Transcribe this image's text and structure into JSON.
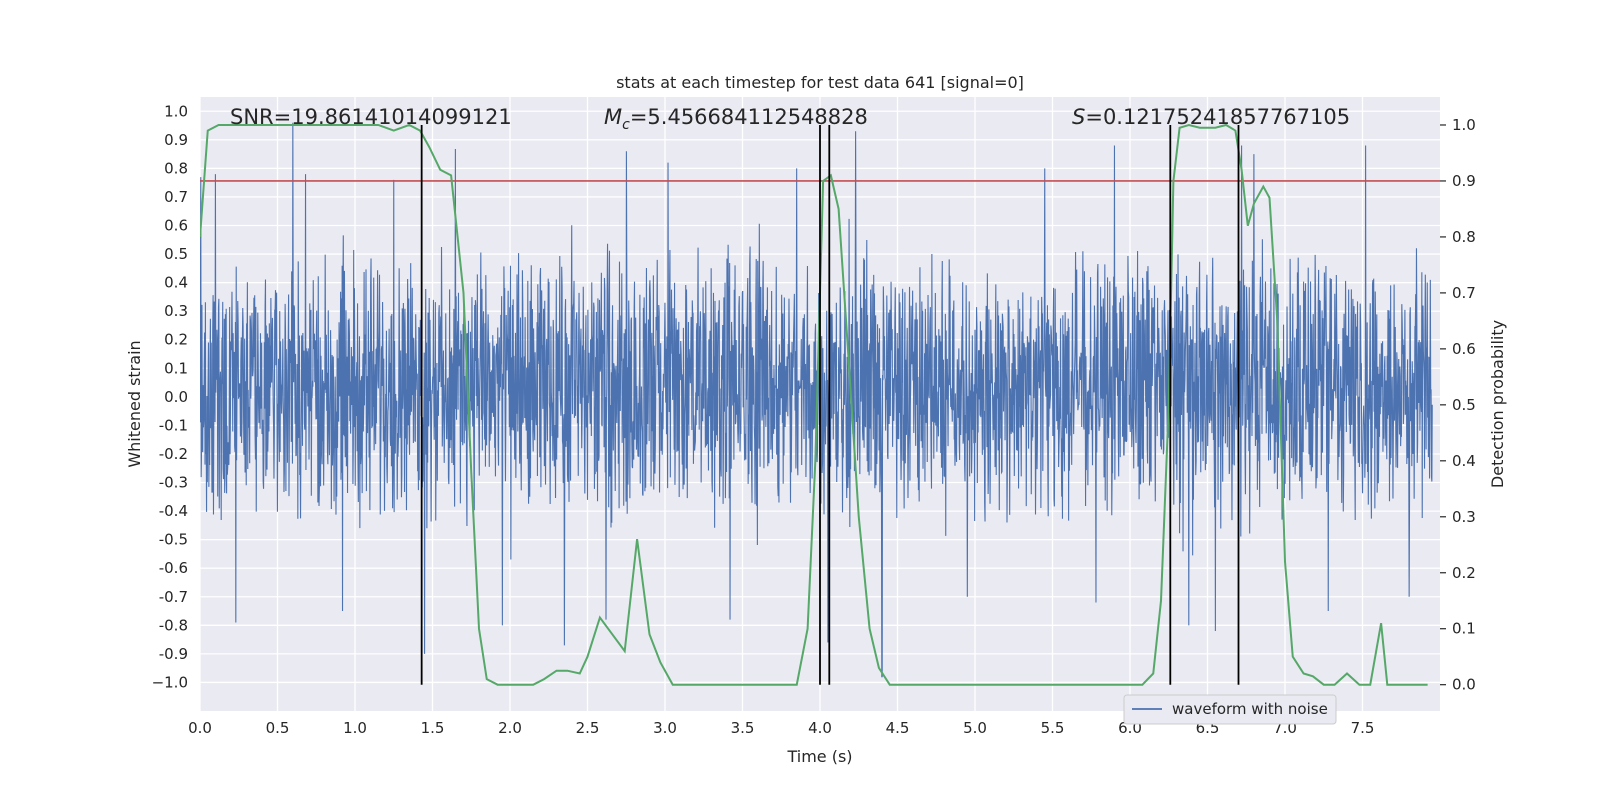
{
  "chart_data": {
    "type": "line",
    "title": "stats at each timestep for test data 641 [signal=0]",
    "xlabel": "Time (s)",
    "ylabel": "Whitened strain",
    "y2label": "Detection probability",
    "xlim": [
      0.0,
      8.0
    ],
    "ylim": [
      -1.1,
      1.05
    ],
    "y2lim": [
      -0.047,
      1.05
    ],
    "x_ticks": [
      "0.0",
      "0.5",
      "1.0",
      "1.5",
      "2.0",
      "2.5",
      "3.0",
      "3.5",
      "4.0",
      "4.5",
      "5.0",
      "5.5",
      "6.0",
      "6.5",
      "7.0",
      "7.5"
    ],
    "x_tick_values": [
      0.0,
      0.5,
      1.0,
      1.5,
      2.0,
      2.5,
      3.0,
      3.5,
      4.0,
      4.5,
      5.0,
      5.5,
      6.0,
      6.5,
      7.0,
      7.5
    ],
    "y_ticks": [
      "1.0",
      "0.9",
      "0.8",
      "0.7",
      "0.6",
      "0.5",
      "0.4",
      "0.3",
      "0.2",
      "0.1",
      "0.0",
      "-0.1",
      "-0.2",
      "-0.3",
      "-0.4",
      "-0.5",
      "-0.6",
      "-0.7",
      "-0.8",
      "-0.9",
      "−1.0"
    ],
    "y_tick_values": [
      1.0,
      0.9,
      0.8,
      0.7,
      0.6,
      0.5,
      0.4,
      0.3,
      0.2,
      0.1,
      0.0,
      -0.1,
      -0.2,
      -0.3,
      -0.4,
      -0.5,
      -0.6,
      -0.7,
      -0.8,
      -0.9,
      -1.0
    ],
    "y2_ticks": [
      "1.0",
      "0.9",
      "0.8",
      "0.7",
      "0.6",
      "0.5",
      "0.4",
      "0.3",
      "0.2",
      "0.1",
      "0.0"
    ],
    "y2_tick_values": [
      1.0,
      0.9,
      0.8,
      0.7,
      0.6,
      0.5,
      0.4,
      0.3,
      0.2,
      0.1,
      0.0
    ],
    "annotations": {
      "snr": "SNR=19.86141014099121",
      "mc_symbol": "M",
      "mc_sub": "c",
      "mc_value": "=5.456684112548828",
      "s_symbol": "S",
      "s_value": "=0.12175241857767105"
    },
    "threshold": {
      "value": 0.9,
      "color": "#c44e52"
    },
    "vertical_lines": [
      1.43,
      4.0,
      4.06,
      6.26,
      6.7
    ],
    "legend": {
      "label": "waveform with noise",
      "location": "lower-right"
    },
    "colors": {
      "waveform": "#4c72b0",
      "probability": "#55a868",
      "background": "#eaeaf2",
      "vline": "#000000"
    },
    "waveform": {
      "description": "dense noisy whitened strain trace, 0-8 s",
      "typical_envelope": [
        -0.45,
        0.55
      ],
      "spike_times": [
        0.1,
        0.23,
        0.6,
        0.68,
        0.92,
        1.25,
        1.45,
        1.95,
        2.35,
        2.62,
        2.75,
        3.02,
        3.42,
        3.85,
        4.05,
        4.23,
        4.4,
        4.95,
        5.45,
        5.78,
        5.9,
        6.38,
        6.55,
        6.72,
        6.8,
        7.28,
        7.52,
        7.8
      ],
      "spike_values": [
        0.78,
        -0.79,
        0.96,
        0.78,
        -0.75,
        0.76,
        -0.9,
        -0.8,
        -0.87,
        -0.78,
        0.86,
        0.82,
        -0.78,
        0.8,
        -0.86,
        0.93,
        -0.98,
        -0.7,
        0.8,
        -0.72,
        0.88,
        -0.8,
        -0.82,
        0.88,
        0.85,
        -0.75,
        0.88,
        -0.7
      ]
    },
    "probability": {
      "name": "detection probability",
      "x": [
        0.0,
        0.05,
        0.12,
        0.2,
        0.35,
        0.5,
        0.7,
        0.9,
        1.05,
        1.15,
        1.25,
        1.35,
        1.42,
        1.48,
        1.55,
        1.62,
        1.7,
        1.75,
        1.8,
        1.85,
        1.92,
        2.0,
        2.08,
        2.15,
        2.22,
        2.3,
        2.37,
        2.45,
        2.5,
        2.58,
        2.66,
        2.74,
        2.82,
        2.9,
        2.97,
        3.05,
        3.15,
        3.3,
        3.5,
        3.65,
        3.72,
        3.78,
        3.85,
        3.92,
        3.97,
        4.02,
        4.07,
        4.12,
        4.18,
        4.25,
        4.32,
        4.38,
        4.45,
        4.6,
        4.8,
        5.0,
        5.2,
        5.4,
        5.6,
        5.8,
        6.0,
        6.08,
        6.15,
        6.2,
        6.25,
        6.28,
        6.32,
        6.38,
        6.45,
        6.55,
        6.62,
        6.68,
        6.72,
        6.76,
        6.8,
        6.86,
        6.9,
        6.95,
        7.0,
        7.05,
        7.12,
        7.18,
        7.25,
        7.32,
        7.4,
        7.48,
        7.55,
        7.62,
        7.66,
        7.72,
        7.78,
        7.85,
        7.92
      ],
      "y": [
        0.8,
        0.99,
        1.0,
        1.0,
        1.0,
        1.0,
        1.0,
        1.0,
        1.0,
        1.0,
        0.99,
        1.0,
        0.99,
        0.96,
        0.92,
        0.91,
        0.7,
        0.38,
        0.1,
        0.01,
        0.0,
        0.0,
        0.0,
        0.0,
        0.01,
        0.025,
        0.025,
        0.02,
        0.05,
        0.12,
        0.09,
        0.06,
        0.26,
        0.09,
        0.04,
        0.0,
        0.0,
        0.0,
        0.0,
        0.0,
        0.0,
        0.0,
        0.0,
        0.1,
        0.4,
        0.9,
        0.91,
        0.85,
        0.6,
        0.3,
        0.1,
        0.03,
        0.0,
        0.0,
        0.0,
        0.0,
        0.0,
        0.0,
        0.0,
        0.0,
        0.0,
        0.0,
        0.02,
        0.15,
        0.5,
        0.9,
        0.995,
        1.0,
        0.995,
        0.995,
        1.0,
        0.99,
        0.92,
        0.82,
        0.86,
        0.89,
        0.87,
        0.65,
        0.22,
        0.05,
        0.02,
        0.015,
        0.0,
        0.0,
        0.02,
        0.0,
        0.0,
        0.11,
        0.0,
        0.0,
        0.0,
        0.0,
        0.0
      ]
    }
  }
}
